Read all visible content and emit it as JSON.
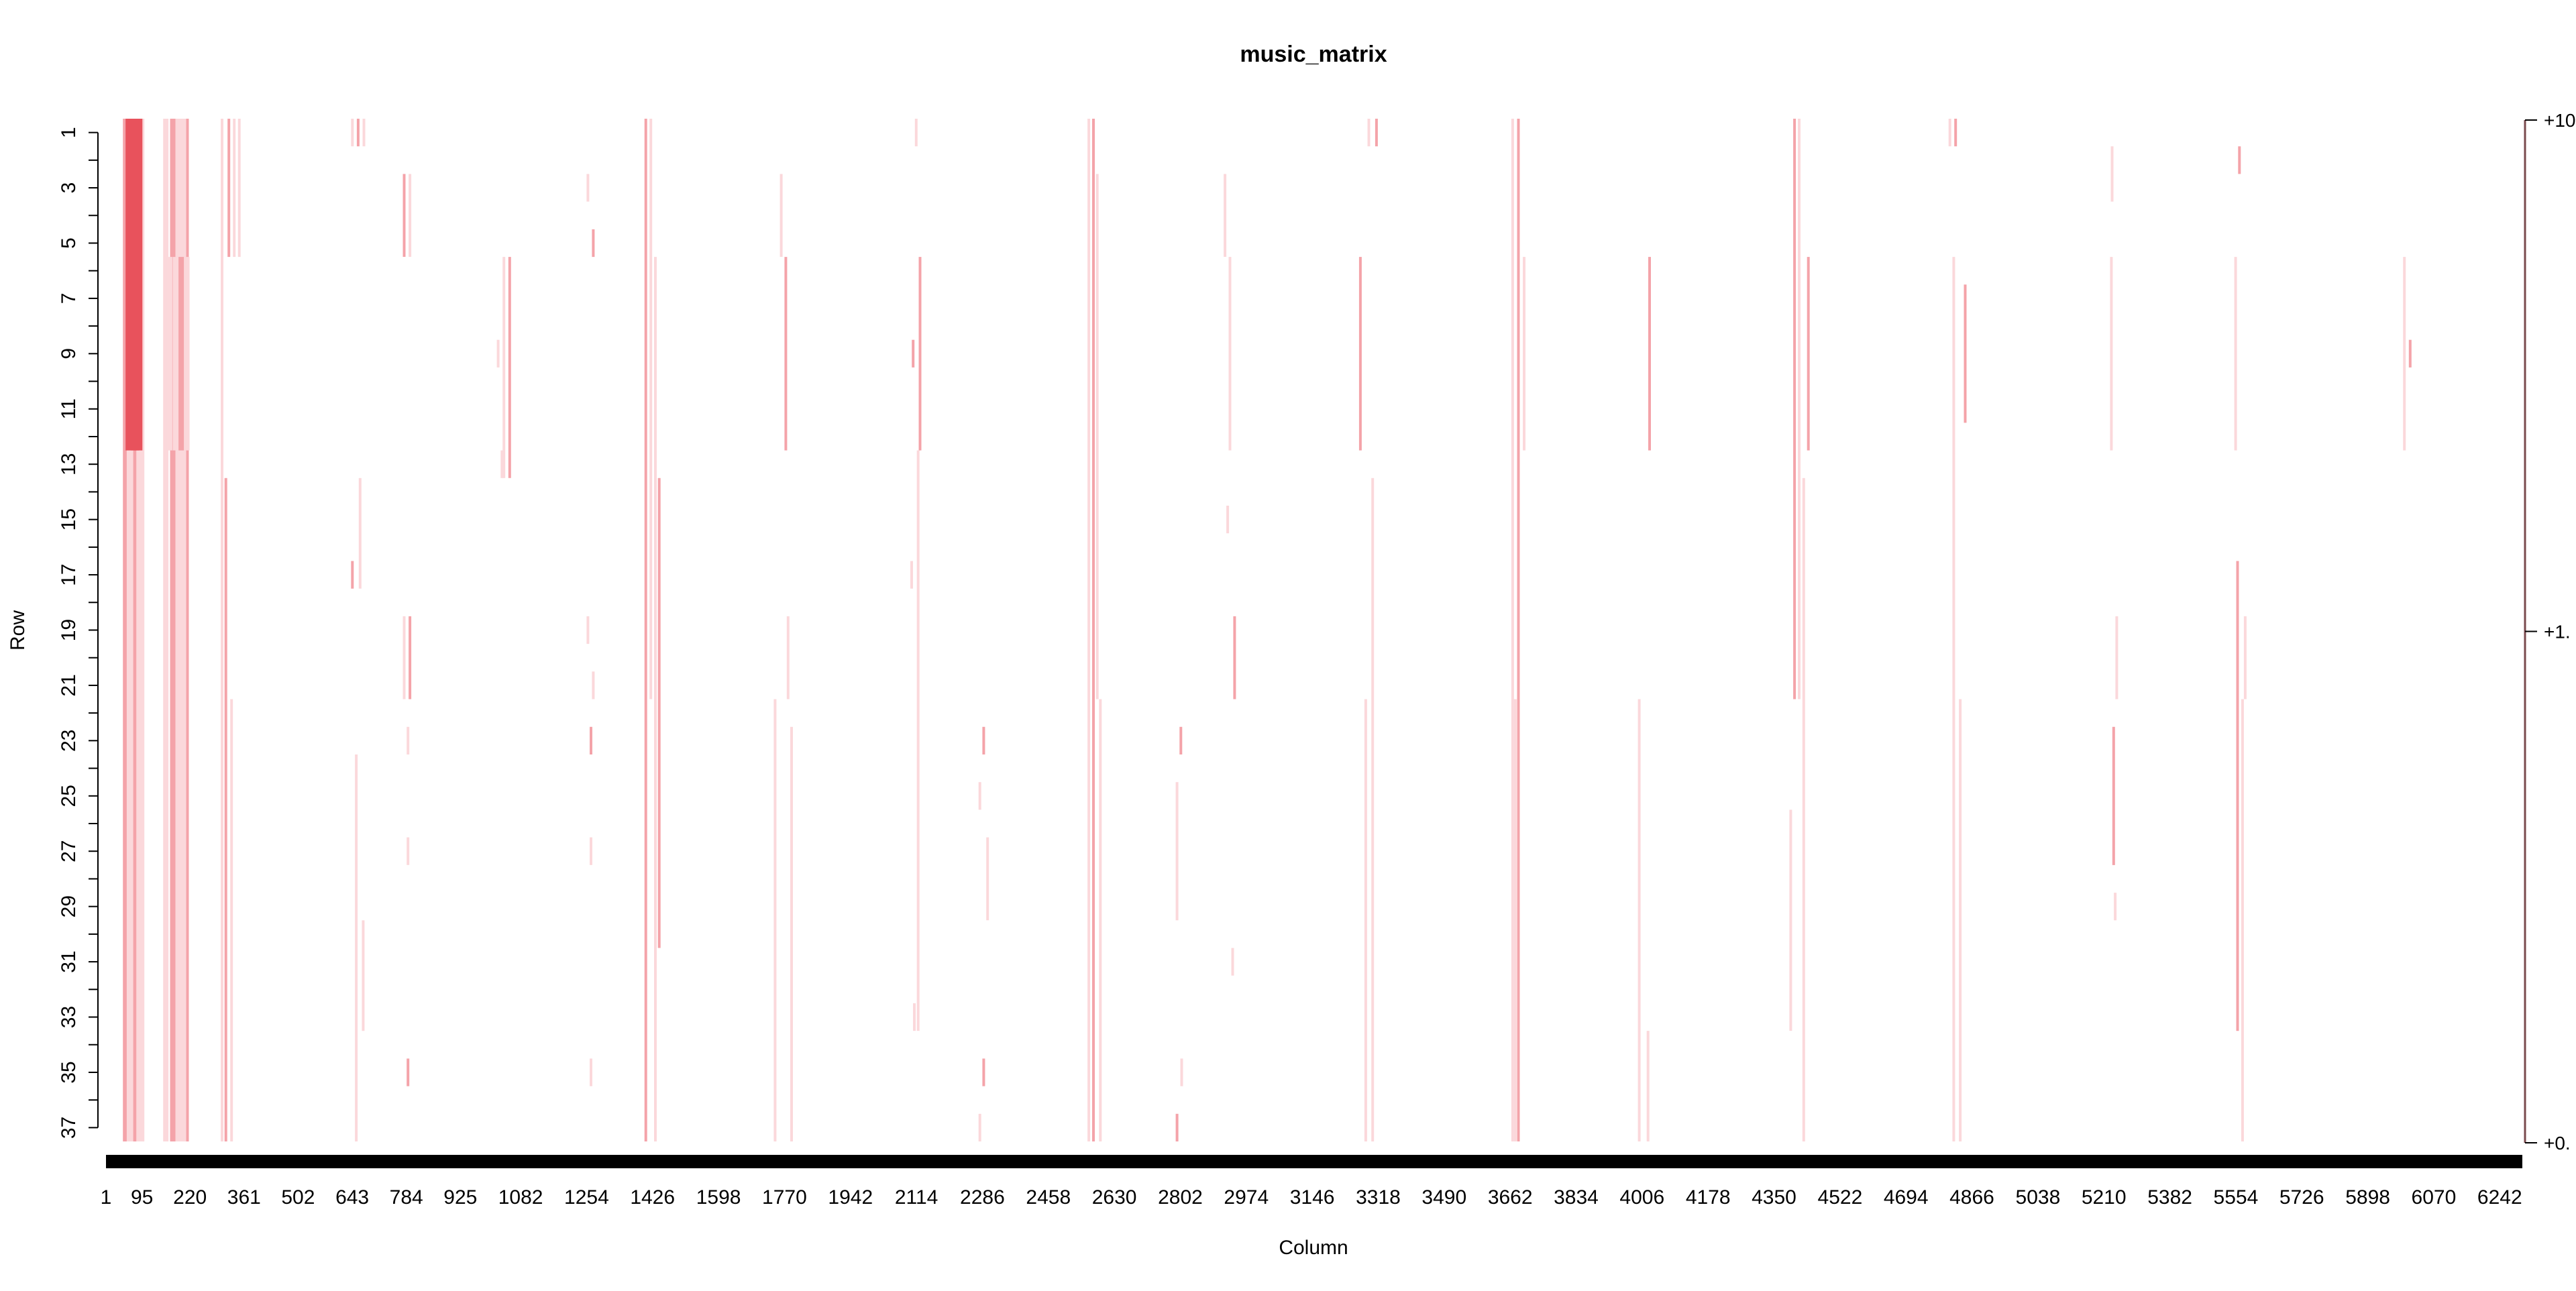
{
  "chart_data": {
    "type": "heatmap",
    "title": "music_matrix",
    "xlabel": "Column",
    "ylabel": "Row",
    "n_rows": 37,
    "n_cols": 6300,
    "xlim": [
      1,
      6300
    ],
    "ylim": [
      1,
      37
    ],
    "x_tick_labels": [
      "1",
      "95",
      "220",
      "361",
      "502",
      "643",
      "784",
      "925",
      "1082",
      "1254",
      "1426",
      "1598",
      "1770",
      "1942",
      "2114",
      "2286",
      "2458",
      "2630",
      "2802",
      "2974",
      "3146",
      "3318",
      "3490",
      "3662",
      "3834",
      "4006",
      "4178",
      "4350",
      "4522",
      "4694",
      "4866",
      "5038",
      "5210",
      "5382",
      "5554",
      "5726",
      "5898",
      "6070",
      "6242"
    ],
    "y_tick_labels": [
      "1",
      "3",
      "5",
      "7",
      "9",
      "11",
      "13",
      "15",
      "17",
      "19",
      "21",
      "23",
      "25",
      "27",
      "29",
      "31",
      "33",
      "35",
      "37"
    ],
    "legend_tick_labels": [
      "+10",
      "+1.",
      "+0."
    ],
    "grid": false,
    "legend_placement": "right",
    "colors": {
      "high": "#e8525c",
      "mid": "#f4a3a9",
      "low": "#fbd8db",
      "background": "#ffffff",
      "ink": "#000000"
    },
    "cells": [
      [
        45,
        1,
        37,
        2
      ],
      [
        55,
        1,
        37,
        3
      ],
      [
        63,
        1,
        37,
        2
      ],
      [
        72,
        1,
        37,
        2
      ],
      [
        80,
        1,
        37,
        3
      ],
      [
        52,
        1,
        12,
        3
      ],
      [
        66,
        1,
        12,
        3
      ],
      [
        75,
        1,
        12,
        3
      ],
      [
        150,
        1,
        37,
        2
      ],
      [
        168,
        1,
        37,
        2
      ],
      [
        182,
        1,
        37,
        2
      ],
      [
        196,
        1,
        37,
        2
      ],
      [
        210,
        1,
        37,
        1
      ],
      [
        160,
        6,
        12,
        2
      ],
      [
        175,
        6,
        12,
        2
      ],
      [
        190,
        6,
        12,
        2
      ],
      [
        205,
        6,
        12,
        2
      ],
      [
        300,
        1,
        37,
        1
      ],
      [
        318,
        1,
        5,
        1
      ],
      [
        332,
        1,
        5,
        1
      ],
      [
        345,
        1,
        5,
        1
      ],
      [
        310,
        14,
        37,
        1
      ],
      [
        325,
        22,
        37,
        1
      ],
      [
        640,
        1,
        1,
        1
      ],
      [
        655,
        1,
        1,
        1
      ],
      [
        670,
        1,
        1,
        1
      ],
      [
        660,
        14,
        17,
        1
      ],
      [
        640,
        17,
        17,
        1
      ],
      [
        650,
        24,
        37,
        1
      ],
      [
        668,
        30,
        33,
        1
      ],
      [
        775,
        3,
        5,
        1
      ],
      [
        790,
        3,
        5,
        1
      ],
      [
        775,
        19,
        21,
        1
      ],
      [
        790,
        19,
        21,
        1
      ],
      [
        785,
        23,
        23,
        1
      ],
      [
        785,
        27,
        27,
        1
      ],
      [
        785,
        35,
        35,
        1
      ],
      [
        1020,
        9,
        9,
        1
      ],
      [
        1035,
        6,
        13,
        1
      ],
      [
        1050,
        6,
        13,
        1
      ],
      [
        1030,
        13,
        13,
        1
      ],
      [
        1254,
        3,
        3,
        1
      ],
      [
        1268,
        5,
        5,
        1
      ],
      [
        1254,
        19,
        19,
        1
      ],
      [
        1268,
        21,
        21,
        1
      ],
      [
        1262,
        23,
        23,
        1
      ],
      [
        1262,
        27,
        27,
        1
      ],
      [
        1262,
        35,
        35,
        1
      ],
      [
        1405,
        1,
        37,
        1
      ],
      [
        1418,
        1,
        21,
        1
      ],
      [
        1430,
        6,
        37,
        1
      ],
      [
        1440,
        14,
        30,
        1
      ],
      [
        1742,
        22,
        37,
        1
      ],
      [
        1758,
        3,
        5,
        1
      ],
      [
        1770,
        6,
        12,
        1
      ],
      [
        1776,
        19,
        21,
        1
      ],
      [
        1785,
        23,
        37,
        1
      ],
      [
        2102,
        9,
        9,
        1
      ],
      [
        2110,
        1,
        1,
        1
      ],
      [
        2115,
        13,
        33,
        1
      ],
      [
        2120,
        6,
        12,
        1
      ],
      [
        2098,
        17,
        17,
        1
      ],
      [
        2105,
        33,
        33,
        1
      ],
      [
        2286,
        23,
        23,
        1
      ],
      [
        2276,
        25,
        25,
        1
      ],
      [
        2296,
        27,
        29,
        1
      ],
      [
        2286,
        35,
        35,
        1
      ],
      [
        2276,
        37,
        37,
        1
      ],
      [
        2560,
        1,
        37,
        1
      ],
      [
        2572,
        1,
        37,
        1
      ],
      [
        2582,
        3,
        21,
        1
      ],
      [
        2590,
        22,
        37,
        1
      ],
      [
        2800,
        23,
        23,
        1
      ],
      [
        2790,
        25,
        29,
        1
      ],
      [
        2802,
        35,
        35,
        1
      ],
      [
        2790,
        37,
        37,
        1
      ],
      [
        2915,
        3,
        5,
        1
      ],
      [
        2928,
        6,
        12,
        1
      ],
      [
        2940,
        19,
        21,
        1
      ],
      [
        2935,
        31,
        31,
        1
      ],
      [
        2922,
        15,
        15,
        1
      ],
      [
        3268,
        6,
        12,
        1
      ],
      [
        3290,
        1,
        1,
        1
      ],
      [
        3300,
        14,
        37,
        1
      ],
      [
        3310,
        1,
        1,
        1
      ],
      [
        3282,
        22,
        37,
        1
      ],
      [
        3665,
        1,
        37,
        1
      ],
      [
        3680,
        1,
        37,
        1
      ],
      [
        3695,
        6,
        12,
        1
      ],
      [
        3672,
        22,
        37,
        1
      ],
      [
        4022,
        6,
        12,
        1
      ],
      [
        3995,
        22,
        37,
        1
      ],
      [
        4018,
        34,
        37,
        1
      ],
      [
        4400,
        1,
        21,
        1
      ],
      [
        4412,
        1,
        21,
        1
      ],
      [
        4424,
        14,
        37,
        1
      ],
      [
        4436,
        6,
        12,
        1
      ],
      [
        4390,
        26,
        33,
        1
      ],
      [
        4805,
        1,
        1,
        1
      ],
      [
        4820,
        1,
        1,
        1
      ],
      [
        4815,
        6,
        37,
        1
      ],
      [
        4832,
        22,
        37,
        1
      ],
      [
        4845,
        7,
        11,
        1
      ],
      [
        5228,
        2,
        3,
        1
      ],
      [
        5240,
        19,
        21,
        1
      ],
      [
        5232,
        23,
        27,
        1
      ],
      [
        5226,
        6,
        12,
        1
      ],
      [
        5236,
        29,
        29,
        1
      ],
      [
        5560,
        2,
        2,
        1
      ],
      [
        5575,
        19,
        21,
        1
      ],
      [
        5550,
        6,
        12,
        1
      ],
      [
        5555,
        17,
        33,
        1
      ],
      [
        5568,
        22,
        37,
        1
      ],
      [
        5990,
        6,
        12,
        1
      ],
      [
        6005,
        9,
        9,
        1
      ]
    ]
  }
}
